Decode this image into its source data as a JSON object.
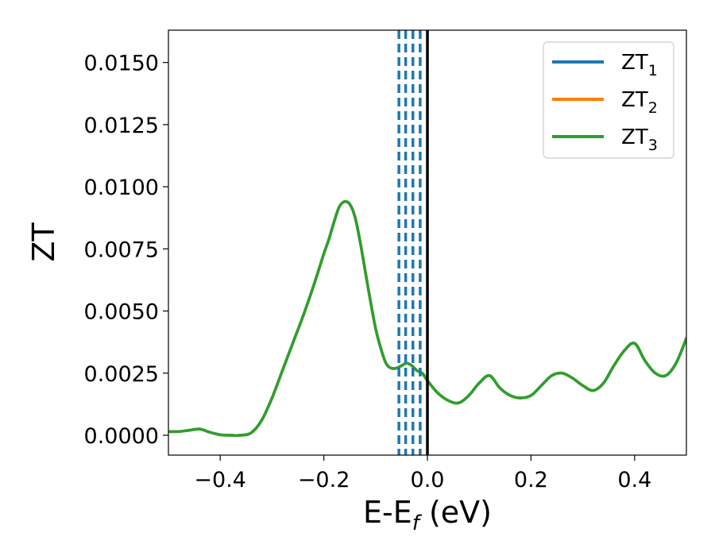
{
  "chart_data": {
    "type": "line",
    "title": "",
    "xlabel": "E-E",
    "xlabel_sub": "f",
    "xlabel_unit": " (eV)",
    "ylabel": "ZT",
    "xlim": [
      -0.5,
      0.5
    ],
    "ylim": [
      -0.0008,
      0.0163
    ],
    "xticks": [
      -0.4,
      -0.2,
      0.0,
      0.2,
      0.4
    ],
    "xtick_labels": [
      "−0.4",
      "−0.2",
      "0.0",
      "0.2",
      "0.4"
    ],
    "yticks": [
      0.0,
      0.0025,
      0.005,
      0.0075,
      0.01,
      0.0125,
      0.015
    ],
    "ytick_labels": [
      "0.0000",
      "0.0025",
      "0.0050",
      "0.0075",
      "0.0100",
      "0.0125",
      "0.0150"
    ],
    "grid": false,
    "legend_position": "top-right",
    "series": [
      {
        "name": "ZT",
        "name_sub": "1",
        "color": "#1f77b4"
      },
      {
        "name": "ZT",
        "name_sub": "2",
        "color": "#ff7f0e"
      },
      {
        "name": "ZT",
        "name_sub": "3",
        "color": "#2ca02c"
      }
    ],
    "x": [
      -0.5,
      -0.48,
      -0.46,
      -0.44,
      -0.42,
      -0.4,
      -0.38,
      -0.36,
      -0.34,
      -0.32,
      -0.3,
      -0.28,
      -0.26,
      -0.24,
      -0.22,
      -0.2,
      -0.19,
      -0.18,
      -0.17,
      -0.16,
      -0.15,
      -0.14,
      -0.13,
      -0.12,
      -0.11,
      -0.1,
      -0.09,
      -0.08,
      -0.07,
      -0.06,
      -0.05,
      -0.04,
      -0.03,
      -0.02,
      -0.01,
      0.0,
      0.02,
      0.04,
      0.06,
      0.08,
      0.1,
      0.12,
      0.14,
      0.16,
      0.18,
      0.2,
      0.22,
      0.24,
      0.26,
      0.28,
      0.3,
      0.32,
      0.34,
      0.36,
      0.38,
      0.4,
      0.42,
      0.44,
      0.46,
      0.48,
      0.5
    ],
    "y": [
      0.00015,
      0.00015,
      0.0002,
      0.00025,
      0.00012,
      2e-05,
      0.0,
      0.0,
      0.0001,
      0.0006,
      0.0015,
      0.0026,
      0.0037,
      0.0048,
      0.006,
      0.0073,
      0.0079,
      0.0086,
      0.0092,
      0.0094,
      0.0093,
      0.0088,
      0.0078,
      0.0066,
      0.0054,
      0.0043,
      0.0035,
      0.0029,
      0.0027,
      0.0027,
      0.0028,
      0.0029,
      0.0028,
      0.0026,
      0.0025,
      0.0022,
      0.0017,
      0.0014,
      0.0013,
      0.0016,
      0.0021,
      0.0024,
      0.0019,
      0.0016,
      0.0015,
      0.0016,
      0.002,
      0.0024,
      0.0025,
      0.0023,
      0.002,
      0.0018,
      0.0021,
      0.0028,
      0.0034,
      0.0037,
      0.003,
      0.0025,
      0.0024,
      0.0029,
      0.0039
    ],
    "vlines_dashed": {
      "x": [
        -0.055,
        -0.042,
        -0.028,
        -0.014
      ],
      "color": "#1f77b4",
      "style": "dashed"
    },
    "vline_solid": {
      "x": 0.0,
      "color": "#000000",
      "style": "solid"
    }
  }
}
